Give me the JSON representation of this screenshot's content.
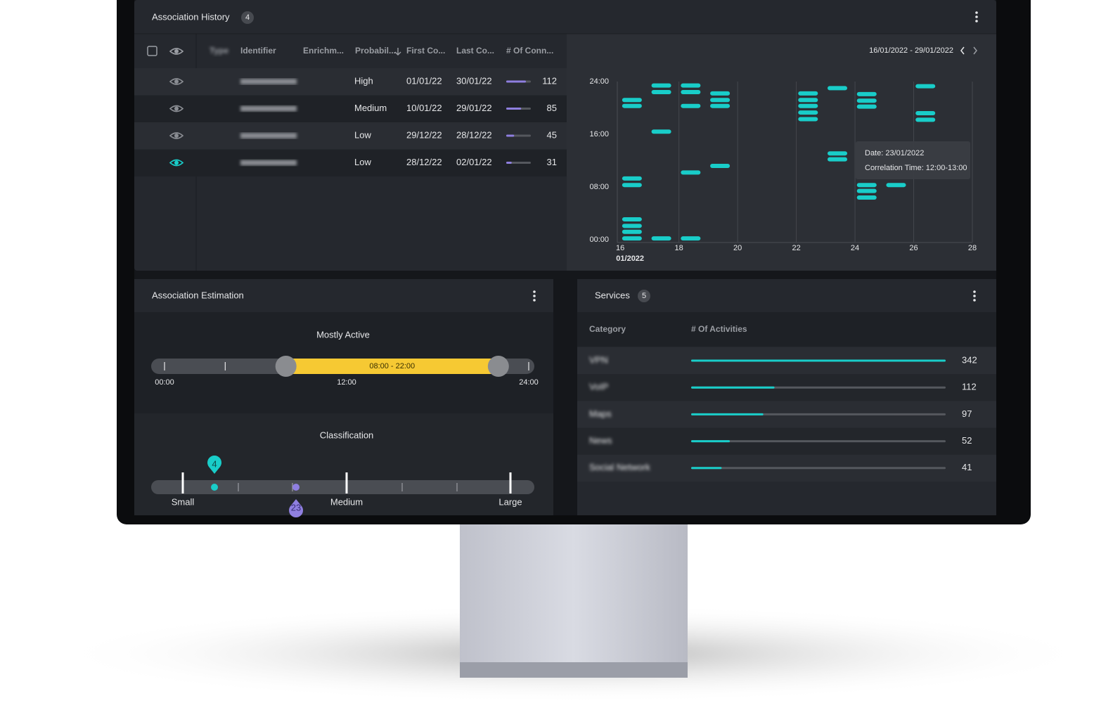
{
  "association_history": {
    "title": "Association History",
    "count": 4,
    "columns": [
      "Type",
      "Identifier",
      "Enrichm...",
      "Probabil...",
      "First Co...",
      "Last Co...",
      "# Of Conn..."
    ],
    "rows": [
      {
        "probability": "High",
        "first_connection": "01/01/22",
        "last_connection": "30/01/22",
        "connections": 112
      },
      {
        "probability": "Medium",
        "first_connection": "10/01/22",
        "last_connection": "29/01/22",
        "connections": 85
      },
      {
        "probability": "Low",
        "first_connection": "29/12/22",
        "last_connection": "28/12/22",
        "connections": 45
      },
      {
        "probability": "Low",
        "first_connection": "28/12/22",
        "last_connection": "02/01/22",
        "connections": 31
      }
    ],
    "selected_row": 3
  },
  "chart_data": {
    "type": "scatter",
    "date_range": "16/01/2022 - 29/01/2022",
    "x_period_label": "01/2022",
    "x": [
      16.4,
      16.4,
      16.4,
      16.4,
      16.4,
      16.4,
      16.4,
      16.4,
      17.4,
      17.4,
      17.4,
      17.4,
      18.4,
      18.4,
      18.4,
      18.4,
      18.4,
      19.4,
      19.4,
      19.4,
      19.4,
      22.4,
      22.4,
      22.4,
      22.4,
      22.4,
      23.4,
      23.4,
      23.4,
      24.4,
      24.4,
      24.4,
      24.4,
      24.4,
      24.4,
      25.4,
      26.4,
      26.4,
      26.4
    ],
    "values": [
      21.2,
      20.3,
      9.3,
      8.3,
      3.1,
      2.1,
      1.2,
      0.2,
      23.4,
      22.4,
      16.4,
      0.2,
      23.4,
      22.4,
      20.3,
      10.2,
      0.2,
      22.2,
      21.2,
      20.3,
      11.2,
      22.2,
      21.2,
      20.3,
      19.3,
      18.3,
      23,
      13.1,
      12.2,
      22.1,
      21.1,
      20.2,
      8.3,
      7.4,
      6.4,
      8.3,
      23.3,
      19.2,
      18.2
    ],
    "color": "#19cdc9",
    "xlim": [
      15.9,
      28
    ],
    "xticks": [
      16,
      18,
      20,
      22,
      24,
      26,
      28
    ],
    "ylim": [
      0,
      24
    ],
    "yticks": [
      {
        "value": 0,
        "label": "00:00"
      },
      {
        "value": 8,
        "label": "08:00"
      },
      {
        "value": 16,
        "label": "16:00"
      },
      {
        "value": 24,
        "label": "24:00"
      }
    ],
    "grid": true,
    "tooltip": {
      "date": "Date: 23/01/2022",
      "time": "Correlation Time: 12:00-13:00"
    }
  },
  "association_estimation": {
    "title": "Association Estimation",
    "activity": {
      "title": "Mostly Active",
      "start": 8,
      "end": 22,
      "range_label": "08:00 - 22:00",
      "ticks": [
        {
          "value": 0,
          "label": "00:00"
        },
        {
          "value": 12,
          "label": "12:00"
        },
        {
          "value": 24,
          "label": "24:00"
        }
      ]
    },
    "classification": {
      "title": "Classification",
      "labels": [
        "Small",
        "Medium",
        "Large"
      ],
      "markers": [
        {
          "value": 4,
          "color": "#19cdc9"
        },
        {
          "value": 23,
          "color": "#8f7fe0"
        }
      ]
    }
  },
  "services": {
    "title": "Services",
    "count": 5,
    "columns": [
      "Category",
      "# Of Activities"
    ],
    "rows": [
      {
        "category": "VPN",
        "activities": 342
      },
      {
        "category": "VoIP",
        "activities": 112
      },
      {
        "category": "Maps",
        "activities": 97
      },
      {
        "category": "News",
        "activities": 52
      },
      {
        "category": "Social Network",
        "activities": 41
      }
    ]
  }
}
